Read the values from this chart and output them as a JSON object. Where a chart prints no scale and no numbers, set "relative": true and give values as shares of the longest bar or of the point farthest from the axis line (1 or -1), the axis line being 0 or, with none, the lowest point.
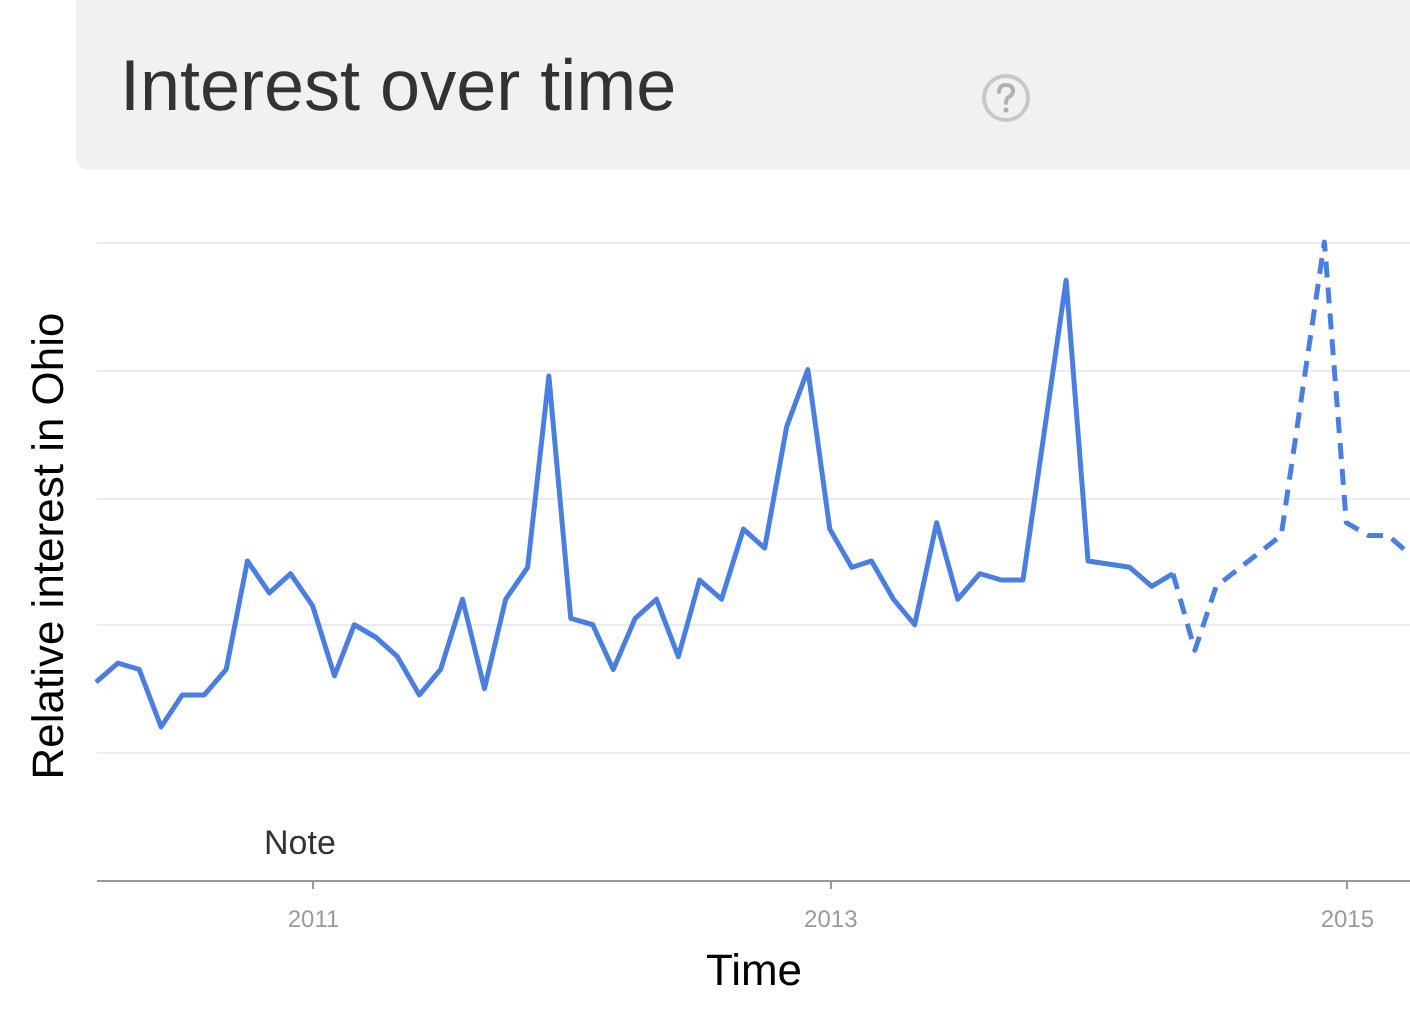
{
  "chart_data": {
    "type": "line",
    "title": "Interest over time",
    "xlabel": "Time",
    "ylabel": "Relative interest in Ohio",
    "relative": true,
    "grid": "y",
    "xlim": [
      "2010-03",
      "2015-04"
    ],
    "xticks": [
      {
        "value": "2011",
        "label": "2011"
      },
      {
        "value": "2013",
        "label": "2013"
      },
      {
        "value": "2015",
        "label": "2015"
      }
    ],
    "annotations": [
      "Note"
    ],
    "series": [
      {
        "color": "#4a7fe0",
        "line_style": "solid",
        "x": [
          "2010-03",
          "2010-04",
          "2010-05",
          "2010-06",
          "2010-07",
          "2010-08",
          "2010-09",
          "2010-10",
          "2010-11",
          "2010-12",
          "2011-01",
          "2011-02",
          "2011-03",
          "2011-04",
          "2011-05",
          "2011-06",
          "2011-07",
          "2011-08",
          "2011-09",
          "2011-10",
          "2011-11",
          "2011-12",
          "2012-01",
          "2012-02",
          "2012-03",
          "2012-04",
          "2012-05",
          "2012-06",
          "2012-07",
          "2012-08",
          "2012-09",
          "2012-10",
          "2012-11",
          "2012-12",
          "2013-01",
          "2013-02",
          "2013-03",
          "2013-04",
          "2013-05",
          "2013-06",
          "2013-07",
          "2013-08",
          "2013-09",
          "2013-10",
          "2013-12",
          "2014-01",
          "2014-03",
          "2014-04",
          "2014-05"
        ],
        "values": [
          0.31,
          0.34,
          0.33,
          0.24,
          0.29,
          0.29,
          0.33,
          0.5,
          0.45,
          0.48,
          0.43,
          0.32,
          0.4,
          0.38,
          0.35,
          0.29,
          0.33,
          0.44,
          0.3,
          0.44,
          0.49,
          0.79,
          0.41,
          0.4,
          0.33,
          0.41,
          0.44,
          0.35,
          0.47,
          0.44,
          0.55,
          0.52,
          0.71,
          0.8,
          0.55,
          0.49,
          0.5,
          0.44,
          0.4,
          0.56,
          0.44,
          0.48,
          0.47,
          0.47,
          0.94,
          0.5,
          0.49,
          0.46,
          0.48
        ]
      },
      {
        "color": "#4a7fe0",
        "line_style": "dashed",
        "x": [
          "2014-05",
          "2014-06",
          "2014-07",
          "2014-10",
          "2014-12",
          "2015-01",
          "2015-02",
          "2015-03",
          "2015-04"
        ],
        "values": [
          0.48,
          0.36,
          0.46,
          0.54,
          1,
          0.56,
          0.54,
          0.54,
          0.51
        ]
      }
    ]
  }
}
